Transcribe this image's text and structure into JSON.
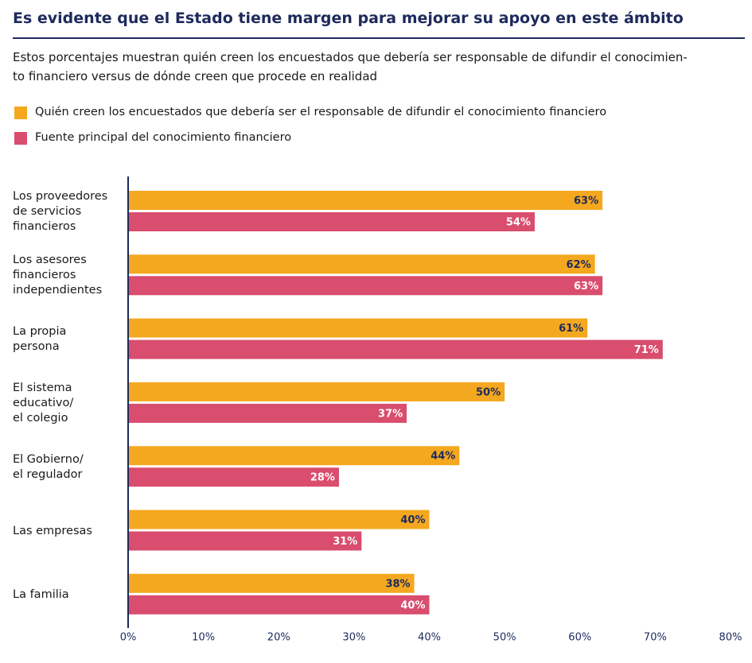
{
  "chart_data": {
    "type": "barh",
    "title": "Es evidente que el Estado tiene margen para mejorar su apoyo en este ámbito",
    "subtitle": "Estos porcentajes muestran quién creen los encuestados que debería ser responsable de difundir el conocimien-\nto financiero versus de dónde creen que procede en realidad",
    "categories": [
      "Los proveedores\nde servicios\nfinancieros",
      "Los asesores\nfinancieros\nindependientes",
      "La propia\npersona",
      "El sistema\neducativo/\nel colegio",
      "El Gobierno/\nel regulador",
      "Las empresas",
      "La familia"
    ],
    "series": [
      {
        "name": "Quién creen los encuestados que debería ser el responsable de difundir el conocimiento financiero",
        "color": "#f4a81f",
        "values": [
          63,
          62,
          61,
          50,
          44,
          40,
          38
        ],
        "value_labels": [
          "63%",
          "62%",
          "61%",
          "50%",
          "44%",
          "40%",
          "38%"
        ]
      },
      {
        "name": "Fuente principal del conocimiento financiero",
        "color": "#d94d6e",
        "values": [
          54,
          63,
          71,
          37,
          28,
          31,
          40
        ],
        "value_labels": [
          "54%",
          "63%",
          "71%",
          "37%",
          "28%",
          "31%",
          "40%"
        ]
      }
    ],
    "xlim": [
      0,
      80
    ],
    "xticks": [
      {
        "value": 0,
        "label": "0%"
      },
      {
        "value": 10,
        "label": "10%"
      },
      {
        "value": 20,
        "label": "20%"
      },
      {
        "value": 30,
        "label": "30%"
      },
      {
        "value": 40,
        "label": "40%"
      },
      {
        "value": 50,
        "label": "50%"
      },
      {
        "value": 60,
        "label": "60%"
      },
      {
        "value": 70,
        "label": "70%"
      },
      {
        "value": 80,
        "label": "80%"
      }
    ]
  }
}
